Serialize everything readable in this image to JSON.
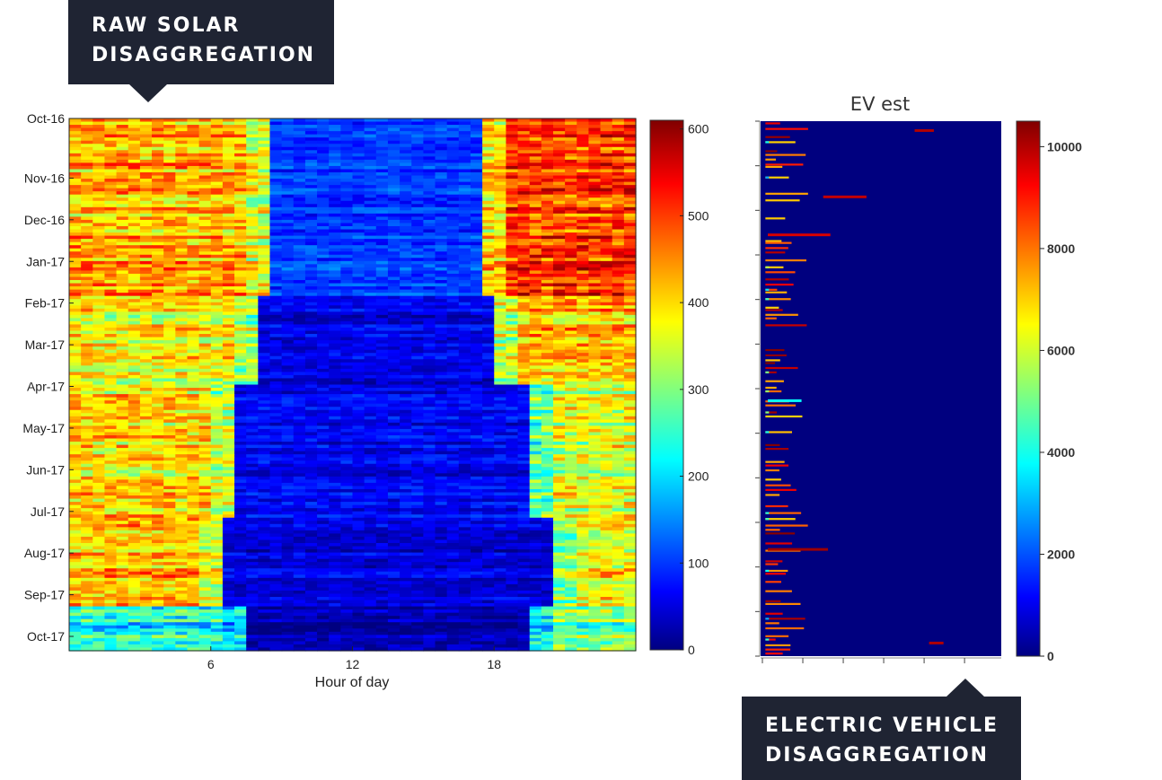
{
  "callouts": {
    "solar": {
      "line1": "RAW SOLAR",
      "line2": "DISAGGREGATION"
    },
    "ev": {
      "line1": "ELECTRIC VEHICLE",
      "line2": "DISAGGREGATION"
    }
  },
  "colors": {
    "callout_bg": "#1f2433",
    "callout_text": "#ffffff",
    "jet_colormap": [
      "#000080",
      "#0000ff",
      "#00ffff",
      "#ffff00",
      "#ff0000",
      "#800000"
    ]
  },
  "chart_data": [
    {
      "type": "heatmap",
      "title": "",
      "xlabel": "Hour of day",
      "ylabel": "",
      "x_ticks": [
        6,
        12,
        18
      ],
      "x_range": [
        0,
        24
      ],
      "y_tick_labels": [
        "Oct-16",
        "Nov-16",
        "Dec-16",
        "Jan-17",
        "Feb-17",
        "Mar-17",
        "Apr-17",
        "May-17",
        "Jun-17",
        "Jul-17",
        "Aug-17",
        "Sep-17",
        "Oct-17"
      ],
      "colormap": "jet",
      "colorbar": {
        "range": [
          0,
          610
        ],
        "ticks": [
          0,
          100,
          200,
          300,
          400,
          500,
          600
        ]
      },
      "profiles": [
        {
          "months": [
            "Oct-16",
            "Nov-16",
            "Dec-16",
            "Jan-17"
          ],
          "night": 430,
          "day": 110,
          "evening": 500,
          "day_start_hour": 8.5,
          "day_end_hour": 17.5
        },
        {
          "months": [
            "Feb-17",
            "Mar-17"
          ],
          "night": 380,
          "day": 60,
          "evening": 420,
          "day_start_hour": 8.2,
          "day_end_hour": 18.0
        },
        {
          "months": [
            "Apr-17",
            "May-17",
            "Jun-17"
          ],
          "night": 400,
          "day": 70,
          "evening": 360,
          "day_start_hour": 7.2,
          "day_end_hour": 19.5
        },
        {
          "months": [
            "Jul-17",
            "Aug-17"
          ],
          "night": 420,
          "day": 55,
          "evening": 380,
          "day_start_hour": 6.5,
          "day_end_hour": 20.5
        },
        {
          "months": [
            "Sep-17",
            "Oct-17"
          ],
          "night": 240,
          "day": 25,
          "evening": 290,
          "day_start_hour": 7.5,
          "day_end_hour": 19.5
        }
      ]
    },
    {
      "type": "heatmap",
      "title": "EV est",
      "xlabel": "",
      "ylabel": "",
      "colormap": "jet",
      "colorbar": {
        "range": [
          0,
          10500
        ],
        "ticks": [
          0,
          2000,
          4000,
          6000,
          8000,
          10000
        ]
      },
      "background_value": 0,
      "charging_events": [
        {
          "y_frac": 0.015,
          "start_frac": 0.64,
          "length_frac": 0.08,
          "value": 10000
        },
        {
          "y_frac": 0.139,
          "start_frac": 0.26,
          "length_frac": 0.18,
          "value": 9800
        },
        {
          "y_frac": 0.21,
          "start_frac": 0.03,
          "length_frac": 0.26,
          "value": 9600
        },
        {
          "y_frac": 0.52,
          "start_frac": 0.03,
          "length_frac": 0.14,
          "value": 4000
        },
        {
          "y_frac": 0.798,
          "start_frac": 0.03,
          "length_frac": 0.25,
          "value": 10200
        },
        {
          "y_frac": 0.973,
          "start_frac": 0.7,
          "length_frac": 0.06,
          "value": 10000
        }
      ]
    }
  ]
}
